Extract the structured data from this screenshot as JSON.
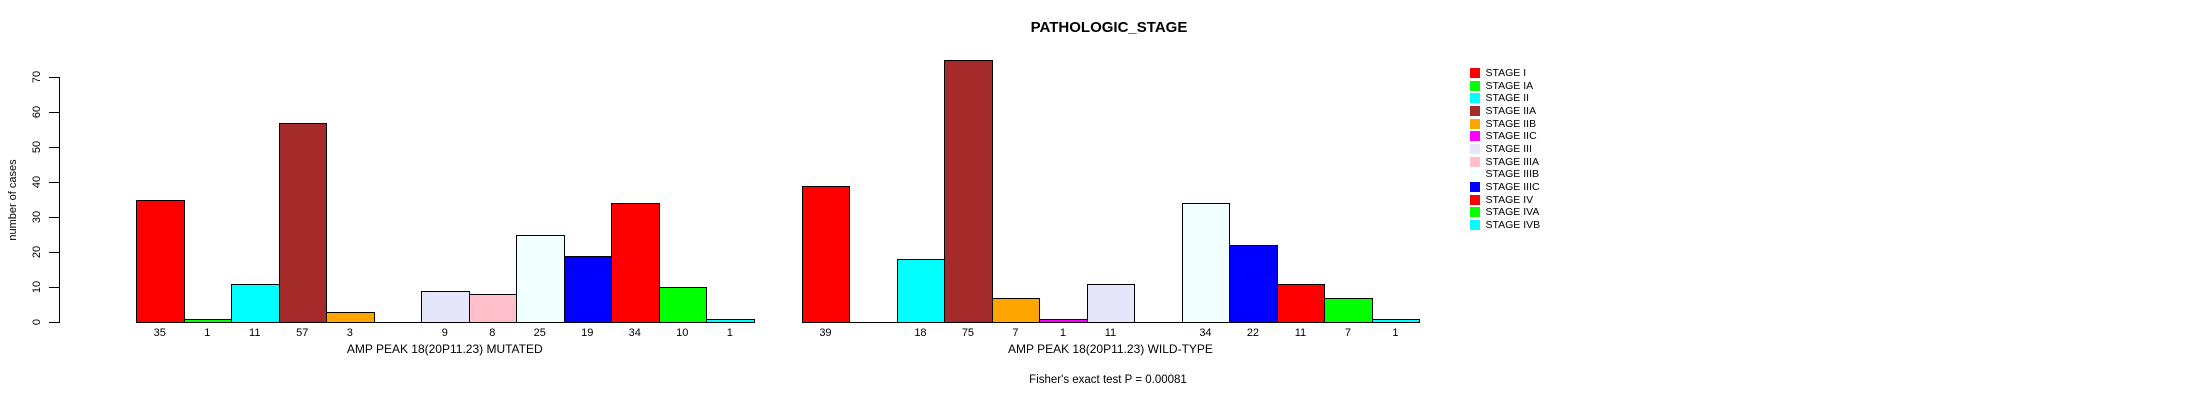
{
  "title": "PATHOLOGIC_STAGE",
  "chart_data": {
    "type": "bar",
    "title": "PATHOLOGIC_STAGE",
    "ylabel": "number of cases",
    "xlabel": "",
    "ylim": [
      0,
      70
    ],
    "yticks": [
      0,
      10,
      20,
      30,
      40,
      50,
      60,
      70
    ],
    "grid": false,
    "bar_border_color": "#000000",
    "categories": [
      "STAGE I",
      "STAGE IA",
      "STAGE II",
      "STAGE IIA",
      "STAGE IIB",
      "STAGE IIC",
      "STAGE III",
      "STAGE IIIA",
      "STAGE IIIB",
      "STAGE IIIC",
      "STAGE IV",
      "STAGE IVA",
      "STAGE IVB"
    ],
    "category_colors": [
      "#FF0000",
      "#00FF00",
      "#00FFFF",
      "#A52A2A",
      "#FFA500",
      "#FF00FF",
      "#E6E6FA",
      "#FFC0CB",
      "#F0FFFF",
      "#0000FF",
      "#FF0000",
      "#00FF00",
      "#00FFFF"
    ],
    "series": [
      {
        "name": "AMP PEAK 18(20P11.23) MUTATED",
        "values": [
          35,
          1,
          11,
          57,
          3,
          0,
          9,
          8,
          25,
          19,
          34,
          10,
          1
        ]
      },
      {
        "name": "AMP PEAK 18(20P11.23) WILD-TYPE",
        "values": [
          39,
          0,
          18,
          75,
          7,
          1,
          11,
          0,
          34,
          22,
          11,
          7,
          1
        ]
      }
    ],
    "value_label_rule": "shown under each bar only when value > 0",
    "legend": {
      "position": "right",
      "entries": [
        "STAGE I",
        "STAGE IA",
        "STAGE II",
        "STAGE IIA",
        "STAGE IIB",
        "STAGE IIC",
        "STAGE III",
        "STAGE IIIA",
        "STAGE IIIB",
        "STAGE IIIC",
        "STAGE IV",
        "STAGE IVA",
        "STAGE IVB"
      ]
    },
    "annotation": "Fisher's exact test P = 0.00081"
  }
}
